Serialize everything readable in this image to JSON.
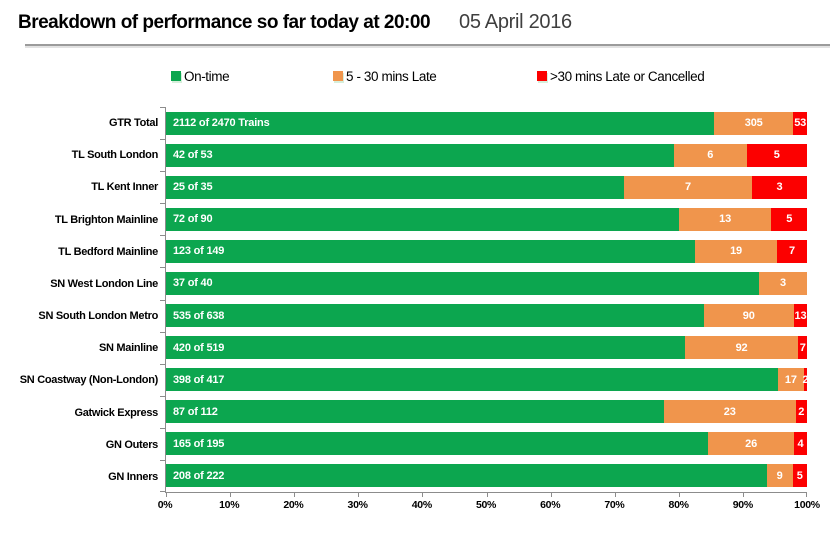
{
  "header": {
    "title": "Breakdown of performance so far today at 20:00",
    "date": "05 April 2016"
  },
  "colors": {
    "on_time": "#0ca64f",
    "late": "#f0954c",
    "cancelled": "#fc0000",
    "axis": "#8c8c8c"
  },
  "legend": [
    {
      "label": "On-time",
      "color": "#0ca64f"
    },
    {
      "label": "5 - 30 mins Late",
      "color": "#f0954c"
    },
    {
      "label": ">30 mins Late or Cancelled",
      "color": "#fc0000"
    }
  ],
  "chart_data": {
    "type": "bar",
    "orientation": "horizontal",
    "stacked": true,
    "normalized": "percent-of-total",
    "grid": false,
    "xlim": [
      0,
      100
    ],
    "x_ticks": [
      "0%",
      "10%",
      "20%",
      "30%",
      "40%",
      "50%",
      "60%",
      "70%",
      "80%",
      "90%",
      "100%"
    ],
    "categories": [
      "GTR Total",
      "TL South London",
      "TL Kent Inner",
      "TL Brighton Mainline",
      "TL Bedford Mainline",
      "SN West London Line",
      "SN South London Metro",
      "SN Mainline",
      "SN Coastway (Non-London)",
      "Gatwick Express",
      "GN Outers",
      "GN Inners"
    ],
    "totals": [
      2470,
      53,
      35,
      90,
      149,
      40,
      638,
      519,
      417,
      112,
      195,
      222
    ],
    "series": [
      {
        "name": "On-time",
        "color": "#0ca64f",
        "values": [
          2112,
          42,
          25,
          72,
          123,
          37,
          535,
          420,
          398,
          87,
          165,
          208
        ],
        "labels": [
          "2112 of 2470 Trains",
          "42 of 53",
          "25 of 35",
          "72 of 90",
          "123 of 149",
          "37 of 40",
          "535 of 638",
          "420 of 519",
          "398 of 417",
          "87 of 112",
          "165 of 195",
          "208 of 222"
        ]
      },
      {
        "name": "5 - 30 mins Late",
        "color": "#f0954c",
        "values": [
          305,
          6,
          7,
          13,
          19,
          3,
          90,
          92,
          17,
          23,
          26,
          9
        ],
        "labels": [
          "305",
          "6",
          "7",
          "13",
          "19",
          "3",
          "90",
          "92",
          "17",
          "23",
          "26",
          "9"
        ]
      },
      {
        "name": ">30 mins Late or Cancelled",
        "color": "#fc0000",
        "values": [
          53,
          5,
          3,
          5,
          7,
          0,
          13,
          7,
          2,
          2,
          4,
          5
        ],
        "labels": [
          "53",
          "5",
          "3",
          "5",
          "7",
          "",
          "13",
          "7",
          "2",
          "2",
          "4",
          "5"
        ]
      }
    ]
  }
}
